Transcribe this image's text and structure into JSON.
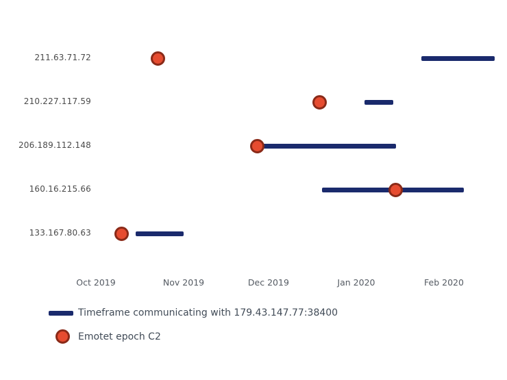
{
  "chart_data": {
    "type": "bar",
    "subtype": "gantt-timeline",
    "title": "",
    "xlabel": "",
    "ylabel": "",
    "grid": false,
    "x_axis": {
      "tick_labels": [
        "Oct 2019",
        "Nov 2019",
        "Dec 2019",
        "Jan 2020",
        "Feb 2020"
      ],
      "tick_dates": [
        "2019-10-01",
        "2019-11-01",
        "2019-12-01",
        "2020-01-01",
        "2020-02-01"
      ]
    },
    "xlim": [
      "2019-09-24",
      "2020-02-22"
    ],
    "categories": [
      "211.63.71.72",
      "210.227.117.59",
      "206.189.112.148",
      "160.16.215.66",
      "133.167.80.63"
    ],
    "series": [
      {
        "name": "Timeframe communicating with 179.43.147.77:38400",
        "kind": "range-bar",
        "color": "#1a2a6c",
        "values": [
          {
            "category": "211.63.71.72",
            "start": "2020-01-24",
            "end": "2020-02-19"
          },
          {
            "category": "210.227.117.59",
            "start": "2020-01-04",
            "end": "2020-01-14"
          },
          {
            "category": "206.189.112.148",
            "start": "2019-11-27",
            "end": "2020-01-15"
          },
          {
            "category": "160.16.215.66",
            "start": "2019-12-20",
            "end": "2020-02-08"
          },
          {
            "category": "133.167.80.63",
            "start": "2019-10-15",
            "end": "2019-11-01"
          }
        ]
      },
      {
        "name": "Emotet epoch C2",
        "kind": "point",
        "color": "#e64c30",
        "stroke_color": "#8a2a18",
        "values": [
          {
            "category": "211.63.71.72",
            "date": "2019-10-23"
          },
          {
            "category": "210.227.117.59",
            "date": "2019-12-19"
          },
          {
            "category": "206.189.112.148",
            "date": "2019-11-27"
          },
          {
            "category": "160.16.215.66",
            "date": "2020-01-15"
          },
          {
            "category": "133.167.80.63",
            "date": "2019-10-10"
          }
        ]
      }
    ]
  },
  "legend": {
    "position": "bottom-left",
    "items": [
      {
        "label": "Timeframe communicating with 179.43.147.77:38400",
        "marker": "bar",
        "color": "#1a2a6c"
      },
      {
        "label": "Emotet epoch C2",
        "marker": "circle",
        "color": "#e64c30"
      }
    ]
  },
  "colors": {
    "background": "#ffffff",
    "bar": "#1a2a6c",
    "marker_fill": "#e64c30",
    "marker_stroke": "#8a2a18",
    "category_text": "#4a4a4a",
    "tick_text": "#545a62",
    "legend_text": "#414b57"
  }
}
